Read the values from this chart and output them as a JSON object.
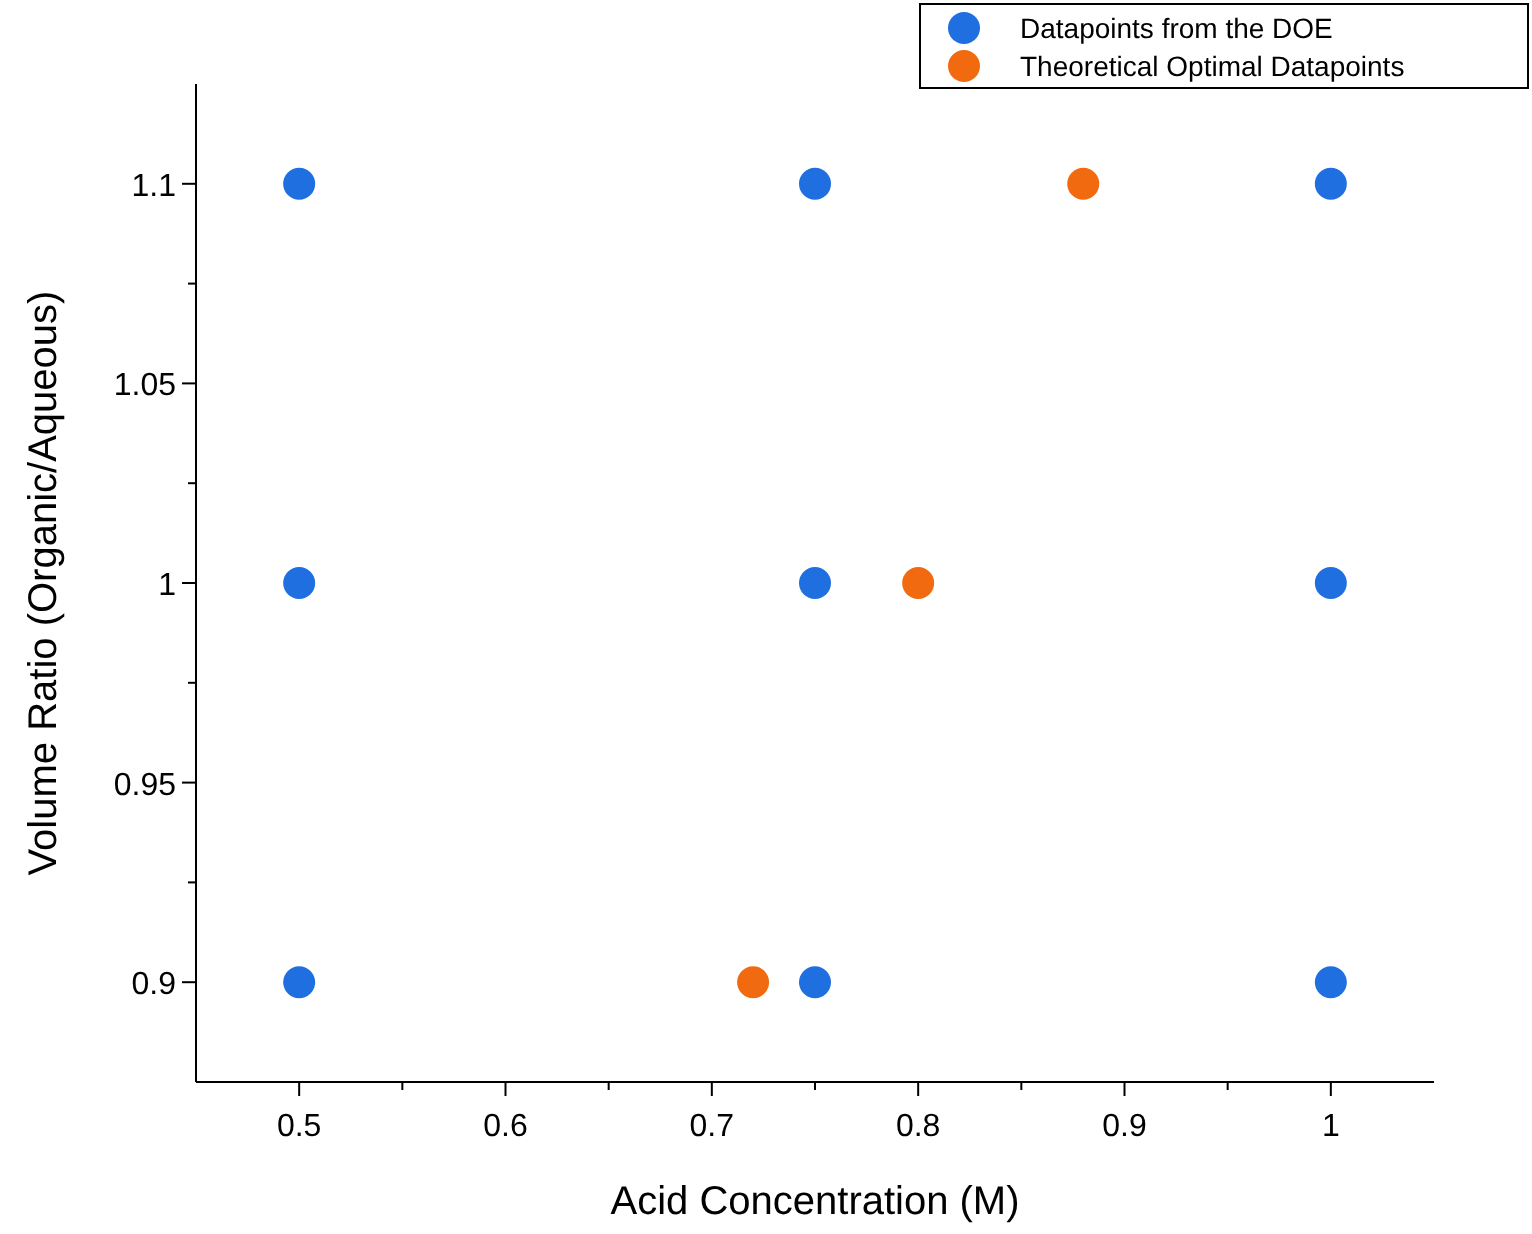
{
  "chart_data": {
    "type": "scatter",
    "xlabel": "Acid Concentration (M)",
    "ylabel": "Volume Ratio (Organic/Aqueous)",
    "xlim": [
      0.45,
      1.05
    ],
    "ylim": [
      0.875,
      1.125
    ],
    "xticks": [
      0.5,
      {
        "value": 0.55,
        "label": null
      },
      0.6,
      {
        "value": 0.65,
        "label": null
      },
      0.7,
      {
        "value": 0.75,
        "label": null
      },
      0.8,
      {
        "value": 0.85,
        "label": null
      },
      0.9,
      {
        "value": 0.95,
        "label": null
      },
      1
    ],
    "yticks": [
      0.9,
      {
        "value": 0.925,
        "label": null
      },
      0.95,
      {
        "value": 0.975,
        "label": null
      },
      1,
      {
        "value": 1.025,
        "label": null
      },
      1.05,
      {
        "value": 1.075,
        "label": null
      },
      1.1
    ],
    "marker": "circle",
    "grid": false,
    "legend": "top right",
    "series": [
      {
        "name": "Datapoints from the DOE",
        "color": "#1f6fe0",
        "x": [
          0.5,
          0.5,
          0.5,
          0.75,
          0.75,
          0.75,
          1,
          1,
          1
        ],
        "values": [
          1.1,
          1,
          0.9,
          1.1,
          1,
          0.9,
          1.1,
          1,
          0.9
        ]
      },
      {
        "name": "Theoretical Optimal Datapoints",
        "color": "#f26a10",
        "x": [
          0.72,
          0.8,
          0.88
        ],
        "values": [
          0.9,
          1,
          1.1
        ]
      }
    ]
  }
}
